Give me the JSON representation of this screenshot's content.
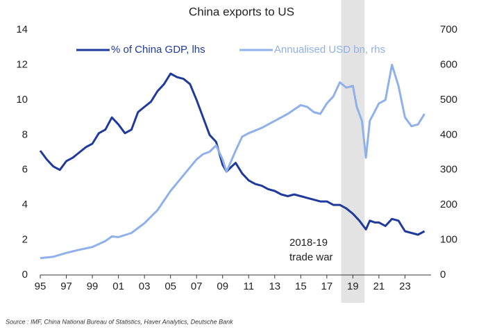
{
  "chart_data": {
    "type": "line",
    "title": "China exports to US",
    "source": "Source : IMF, China National Bureau of Statistics, Haver Analytics, Deutsche Bank",
    "annotation": [
      "2018-19",
      "trade war"
    ],
    "shaded_range": [
      2018.1,
      2019.9
    ],
    "xlim": [
      1995,
      2025
    ],
    "xticks": [
      {
        "value": 1995,
        "label": "95"
      },
      {
        "value": 1997,
        "label": "97"
      },
      {
        "value": 1999,
        "label": "99"
      },
      {
        "value": 2001,
        "label": "01"
      },
      {
        "value": 2003,
        "label": "03"
      },
      {
        "value": 2005,
        "label": "05"
      },
      {
        "value": 2007,
        "label": "07"
      },
      {
        "value": 2009,
        "label": "09"
      },
      {
        "value": 2011,
        "label": "11"
      },
      {
        "value": 2013,
        "label": "13"
      },
      {
        "value": 2015,
        "label": "15"
      },
      {
        "value": 2017,
        "label": "17"
      },
      {
        "value": 2019,
        "label": "19"
      },
      {
        "value": 2021,
        "label": "21"
      },
      {
        "value": 2023,
        "label": "23"
      }
    ],
    "ylim": [
      0,
      14
    ],
    "yticks": [
      0,
      2,
      4,
      6,
      8,
      10,
      12,
      14
    ],
    "y2lim": [
      0,
      700
    ],
    "y2ticks": [
      0,
      100,
      200,
      300,
      400,
      500,
      600,
      700
    ],
    "series": [
      {
        "name": "% of China GDP, lhs",
        "color": "#1f3a9c",
        "axis": "y",
        "x": [
          1995,
          1995.5,
          1996,
          1996.5,
          1997,
          1997.5,
          1998,
          1998.5,
          1999,
          1999.5,
          2000,
          2000.5,
          2001,
          2001.5,
          2002,
          2002.5,
          2003,
          2003.5,
          2004,
          2004.5,
          2005,
          2005.5,
          2006,
          2006.5,
          2007,
          2007.5,
          2008,
          2008.5,
          2009,
          2009.3,
          2009.7,
          2010,
          2010.5,
          2011,
          2011.5,
          2012,
          2012.5,
          2013,
          2013.5,
          2014,
          2014.5,
          2015,
          2015.5,
          2016,
          2016.5,
          2017,
          2017.5,
          2018,
          2018.5,
          2019,
          2019.5,
          2020,
          2020.3,
          2020.7,
          2021,
          2021.5,
          2022,
          2022.5,
          2023,
          2023.5,
          2024,
          2024.5
        ],
        "values": [
          7.1,
          6.6,
          6.2,
          6.0,
          6.5,
          6.7,
          7.0,
          7.3,
          7.5,
          8.1,
          8.3,
          9.0,
          8.6,
          8.1,
          8.3,
          9.3,
          9.6,
          9.9,
          10.5,
          10.9,
          11.5,
          11.3,
          11.2,
          10.9,
          10.0,
          9.0,
          8.0,
          7.6,
          6.3,
          5.9,
          6.2,
          6.4,
          5.8,
          5.4,
          5.2,
          5.1,
          4.9,
          4.8,
          4.6,
          4.5,
          4.6,
          4.5,
          4.4,
          4.3,
          4.2,
          4.2,
          4.0,
          4.0,
          3.8,
          3.5,
          3.1,
          2.6,
          3.1,
          3.0,
          3.0,
          2.8,
          3.2,
          3.1,
          2.5,
          2.4,
          2.3,
          2.5
        ]
      },
      {
        "name": "Annualised USD bn, rhs",
        "color": "#8fb0ea",
        "axis": "y2",
        "x": [
          1995,
          1996,
          1997,
          1998,
          1999,
          2000,
          2000.5,
          2001,
          2002,
          2003,
          2004,
          2005,
          2006,
          2007,
          2007.5,
          2008,
          2008.5,
          2009,
          2009.3,
          2010,
          2010.5,
          2011,
          2012,
          2012.5,
          2013,
          2014,
          2015,
          2015.5,
          2016,
          2016.5,
          2017,
          2017.5,
          2018,
          2018.5,
          2019,
          2019.3,
          2019.7,
          2020,
          2020.3,
          2021,
          2021.5,
          2022,
          2022.5,
          2023,
          2023.5,
          2024,
          2024.5
        ],
        "values": [
          48,
          52,
          63,
          72,
          80,
          97,
          110,
          108,
          120,
          148,
          185,
          240,
          285,
          330,
          345,
          352,
          370,
          330,
          295,
          355,
          395,
          405,
          420,
          430,
          440,
          460,
          485,
          480,
          465,
          460,
          490,
          510,
          550,
          535,
          540,
          480,
          440,
          335,
          440,
          490,
          500,
          600,
          540,
          450,
          425,
          430,
          460
        ]
      }
    ]
  }
}
